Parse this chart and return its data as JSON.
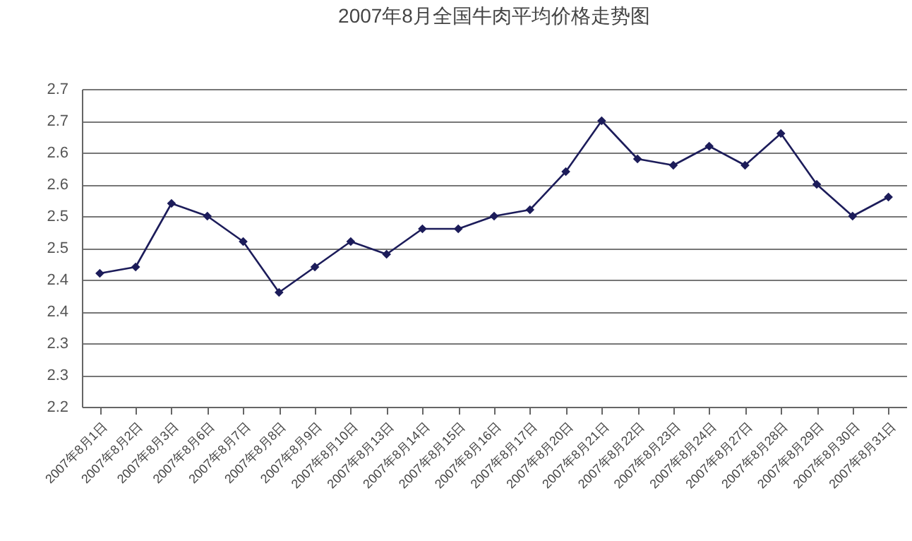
{
  "chart_data": {
    "type": "line",
    "title": "2007年8月全国牛肉平均价格走势图",
    "categories": [
      "2007年8月1日",
      "2007年8月2日",
      "2007年8月3日",
      "2007年8月6日",
      "2007年8月7日",
      "2007年8月8日",
      "2007年8月9日",
      "2007年8月10日",
      "2007年8月13日",
      "2007年8月14日",
      "2007年8月15日",
      "2007年8月16日",
      "2007年8月17日",
      "2007年8月20日",
      "2007年8月21日",
      "2007年8月22日",
      "2007年8月23日",
      "2007年8月24日",
      "2007年8月27日",
      "2007年8月28日",
      "2007年8月29日",
      "2007年8月30日",
      "2007年8月31日"
    ],
    "series": [
      {
        "color": "#1c1c5a",
        "values": [
          2.41,
          2.42,
          2.52,
          2.5,
          2.46,
          2.38,
          2.42,
          2.46,
          2.44,
          2.48,
          2.48,
          2.5,
          2.51,
          2.57,
          2.65,
          2.59,
          2.58,
          2.61,
          2.58,
          2.63,
          2.55,
          2.5,
          2.53
        ]
      }
    ],
    "ylim": [
      2.2,
      2.7
    ],
    "yticks": [
      2.2,
      {
        "value": 2.25,
        "label": "2.3"
      },
      2.3,
      {
        "value": 2.35,
        "label": "2.4"
      },
      2.4,
      {
        "value": 2.45,
        "label": "2.5"
      },
      2.5,
      {
        "value": 2.55,
        "label": "2.6"
      },
      2.6,
      {
        "value": 2.65,
        "label": "2.7"
      },
      2.7
    ],
    "grid": "y",
    "marker": "diamond",
    "line_style": "solid"
  }
}
